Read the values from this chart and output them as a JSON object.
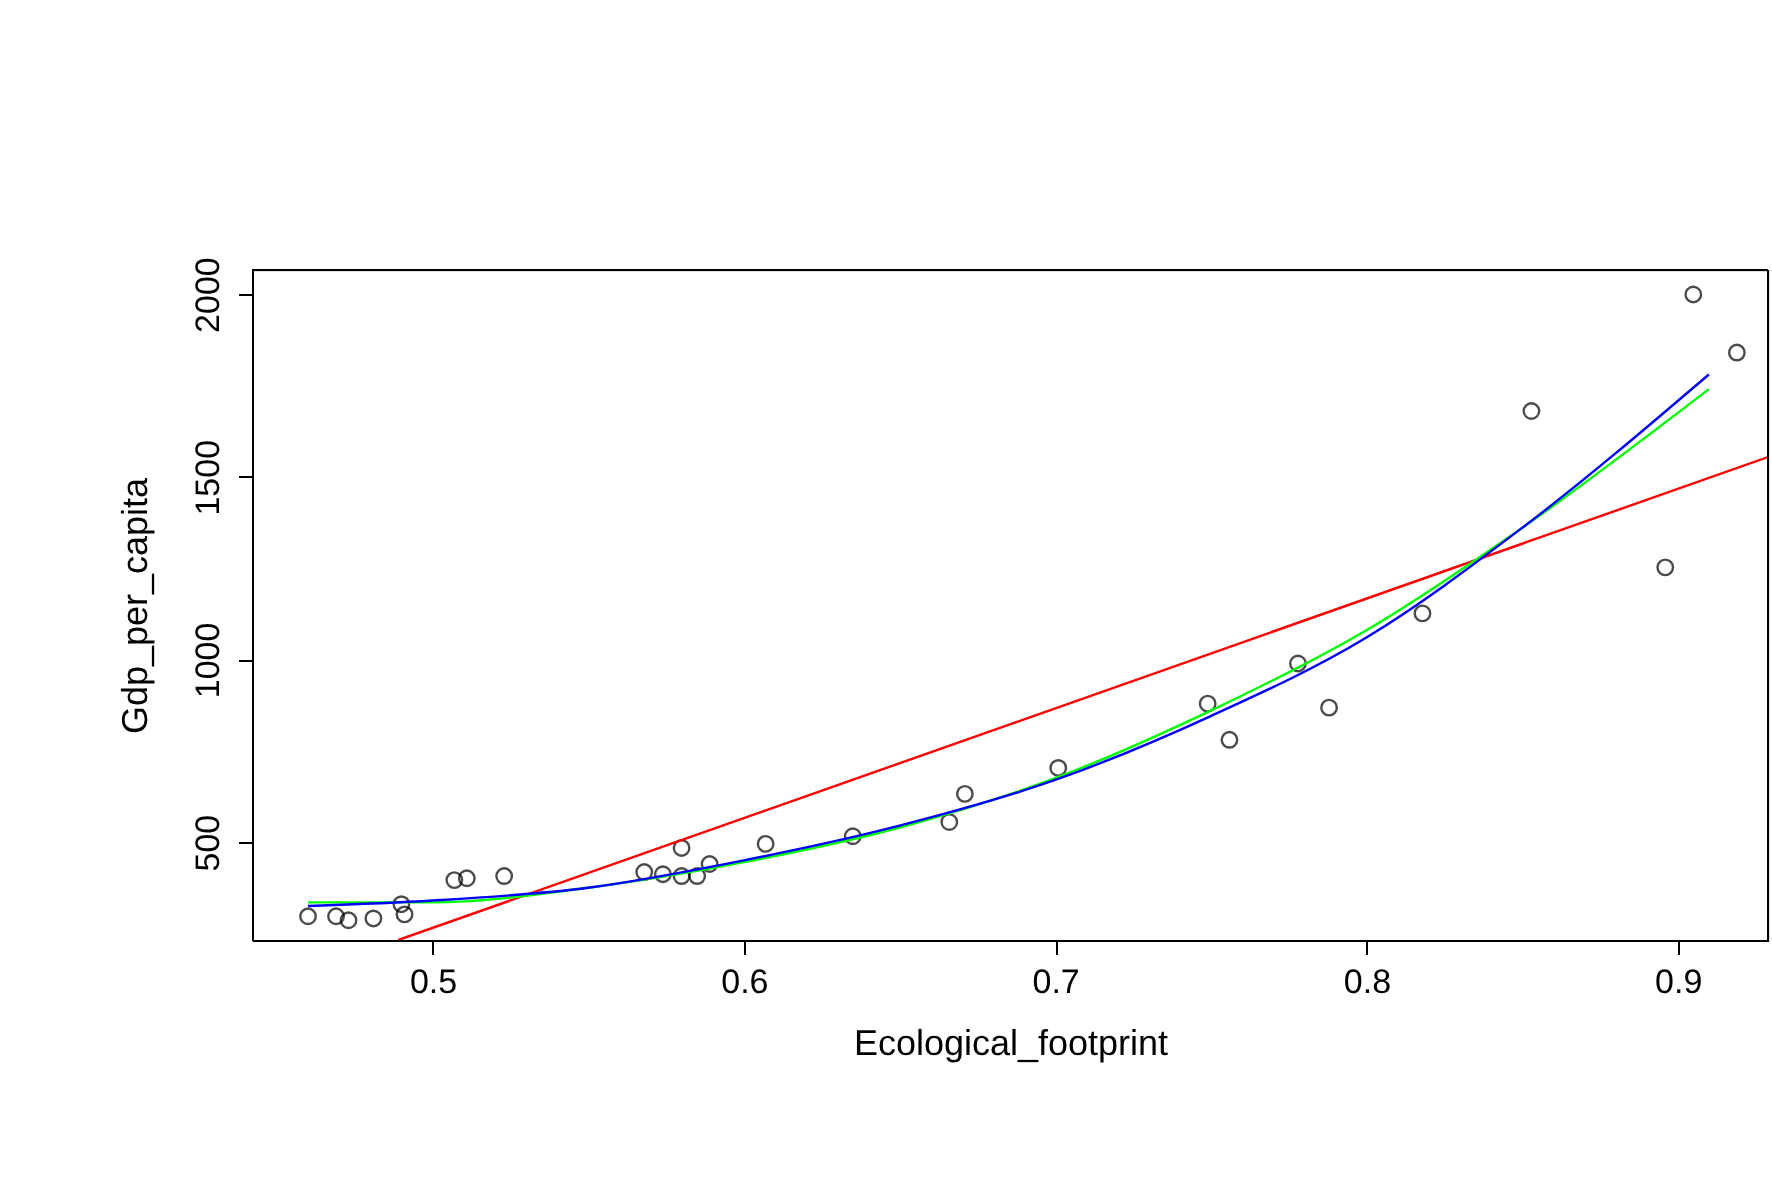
{
  "chart_data": {
    "type": "scatter",
    "xlabel": "Ecological_footprint",
    "ylabel": "Gdp_per_capita",
    "xlim": [
      0.442,
      0.929
    ],
    "ylim": [
      232,
      2066
    ],
    "xticks": [
      0.5,
      0.6,
      0.7,
      0.8,
      0.9
    ],
    "yticks": [
      500,
      1000,
      1500,
      2000
    ],
    "grid": false,
    "legend": false,
    "line_style": "solid",
    "series": [
      {
        "marker": "circle",
        "color": "#000000",
        "x": [
          0.46,
          0.469,
          0.473,
          0.481,
          0.49,
          0.491,
          0.507,
          0.511,
          0.523,
          0.568,
          0.574,
          0.58,
          0.585,
          0.589,
          0.58,
          0.607,
          0.635,
          0.666,
          0.671,
          0.701,
          0.749,
          0.756,
          0.778,
          0.788,
          0.818,
          0.853,
          0.896,
          0.905,
          0.919
        ],
        "values": [
          297,
          297,
          286,
          291,
          330,
          302,
          396,
          401,
          407,
          418,
          412,
          407,
          407,
          440,
          484,
          495,
          516,
          555,
          632,
          703,
          879,
          780,
          989,
          868,
          1126,
          1680,
          1252,
          1999,
          1840
        ]
      },
      {
        "type": "line",
        "color": "#ff0000",
        "x": [
          0.489,
          0.929
        ],
        "values": [
          232,
          1554
        ]
      },
      {
        "type": "line",
        "color": "#00ff00",
        "x": [
          0.46,
          0.5,
          0.55,
          0.6,
          0.65,
          0.7,
          0.75,
          0.8,
          0.85,
          0.91
        ],
        "values": [
          335,
          335,
          375,
          445,
          540,
          675,
          860,
          1080,
          1360,
          1740
        ]
      },
      {
        "type": "line",
        "color": "#0000ff",
        "x": [
          0.46,
          0.5,
          0.55,
          0.6,
          0.65,
          0.7,
          0.75,
          0.8,
          0.85,
          0.91
        ],
        "values": [
          325,
          340,
          375,
          450,
          545,
          670,
          845,
          1060,
          1360,
          1780
        ]
      }
    ]
  }
}
